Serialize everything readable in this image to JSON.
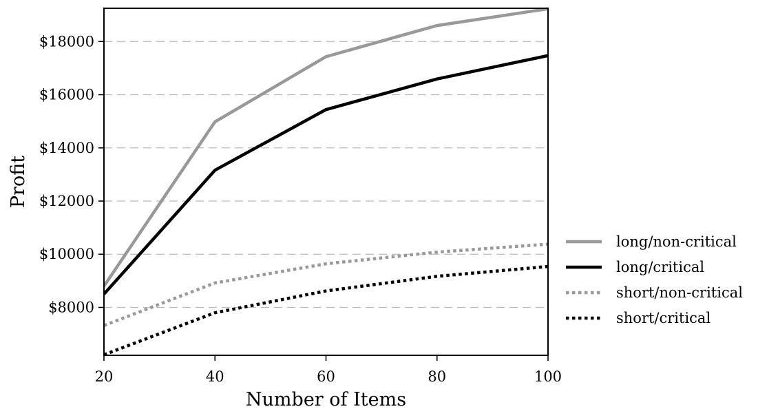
{
  "chart_data": {
    "type": "line",
    "title": "",
    "xlabel": "Number of Items",
    "ylabel": "Profit",
    "x": [
      20,
      40,
      60,
      80,
      100
    ],
    "xlim": [
      20,
      100
    ],
    "ylim": [
      6200,
      19250
    ],
    "xticks": [
      20,
      40,
      60,
      80,
      100
    ],
    "xtick_labels": [
      "20",
      "40",
      "60",
      "80",
      "100"
    ],
    "yticks": [
      8000,
      10000,
      12000,
      14000,
      16000,
      18000
    ],
    "ytick_labels": [
      "$8000",
      "$10000",
      "$12000",
      "$14000",
      "$16000",
      "$18000"
    ],
    "grid": "horizontal dashed",
    "legend_position": "right, outside plot",
    "series": [
      {
        "name": "long/non-critical",
        "values": [
          8800,
          14980,
          17430,
          18600,
          19230
        ],
        "color": "#999999",
        "style": "solid"
      },
      {
        "name": "long/critical",
        "values": [
          8500,
          13160,
          15440,
          16590,
          17470
        ],
        "color": "#000000",
        "style": "solid"
      },
      {
        "name": "short/non-critical",
        "values": [
          7320,
          8920,
          9640,
          10080,
          10380
        ],
        "color": "#999999",
        "style": "dotted"
      },
      {
        "name": "short/critical",
        "values": [
          6220,
          7800,
          8620,
          9170,
          9540
        ],
        "color": "#000000",
        "style": "dotted"
      }
    ]
  }
}
